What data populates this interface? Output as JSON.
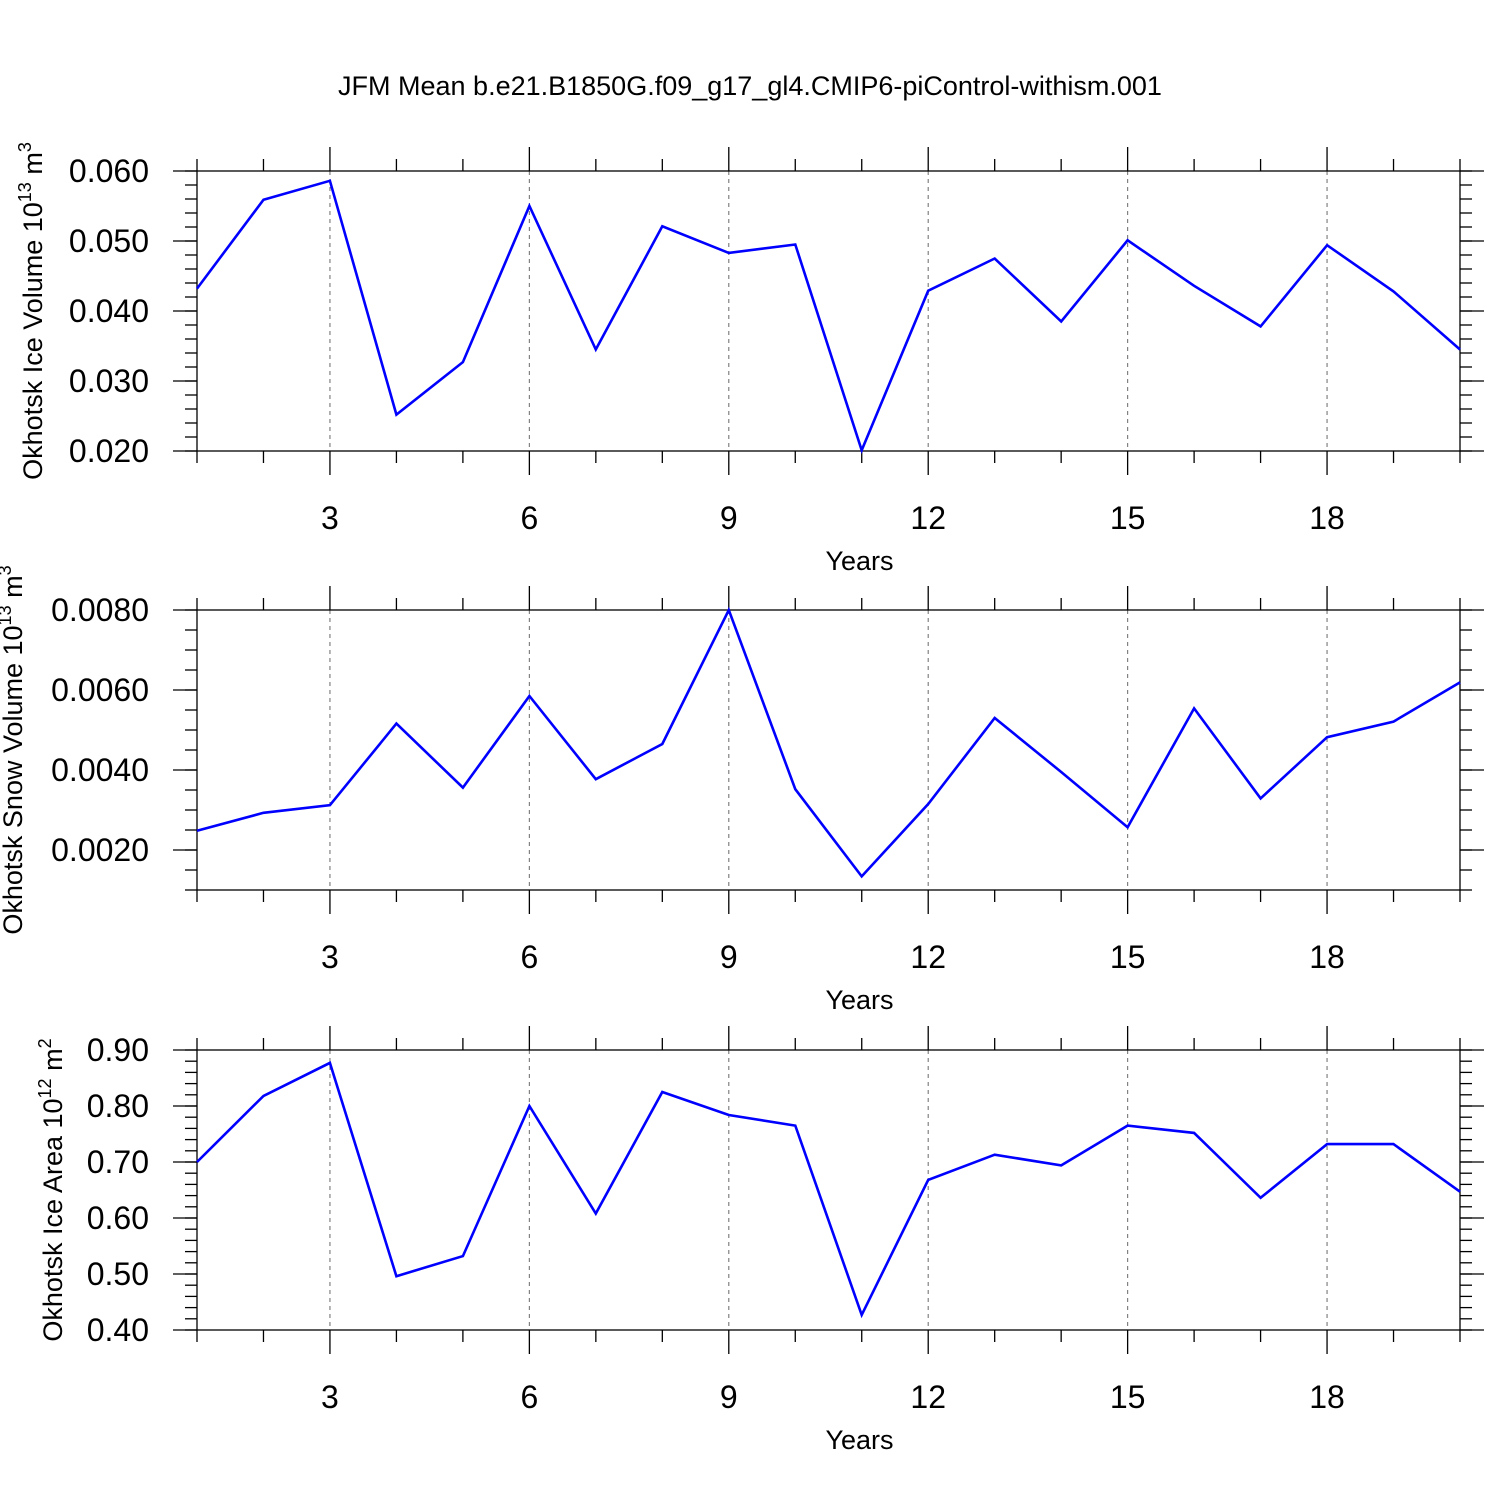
{
  "title": "JFM Mean b.e21.B1850G.f09_g17_gl4.CMIP6-piControl-withism.001",
  "colors": {
    "line": "#0000ff",
    "grid": "#777777",
    "axis": "#000000"
  },
  "chart_data": [
    {
      "type": "line",
      "xlabel": "Years",
      "ylabel": {
        "base": "Okhotsk Ice Volume 10",
        "exp": "13",
        "unit": " m",
        "unit_exp": "3"
      },
      "xlim": [
        1,
        20
      ],
      "ylim": [
        0.02,
        0.06
      ],
      "xticks": [
        3,
        6,
        9,
        12,
        15,
        18
      ],
      "xtick_labels": [
        "3",
        "6",
        "9",
        "12",
        "15",
        "18"
      ],
      "yticks": [
        0.02,
        0.03,
        0.04,
        0.05,
        0.06
      ],
      "ytick_labels": [
        "0.020",
        "0.030",
        "0.040",
        "0.050",
        "0.060"
      ],
      "yminor_step": 0.002,
      "grid": "vertical dashed at major x ticks",
      "x": [
        1,
        2,
        3,
        4,
        5,
        6,
        7,
        8,
        9,
        10,
        11,
        12,
        13,
        14,
        15,
        16,
        17,
        18,
        19,
        20
      ],
      "series": [
        {
          "values": [
            0.0432,
            0.0559,
            0.0586,
            0.0252,
            0.0327,
            0.055,
            0.0345,
            0.0521,
            0.0483,
            0.0495,
            0.0201,
            0.0429,
            0.0475,
            0.0385,
            0.0501,
            0.0436,
            0.0378,
            0.0494,
            0.0428,
            0.0345
          ]
        }
      ]
    },
    {
      "type": "line",
      "xlabel": "Years",
      "ylabel": {
        "base": "Okhotsk Snow Volume 10",
        "exp": "13",
        "unit": " m",
        "unit_exp": "3"
      },
      "xlim": [
        1,
        20
      ],
      "ylim": [
        0.001,
        0.008
      ],
      "xticks": [
        3,
        6,
        9,
        12,
        15,
        18
      ],
      "xtick_labels": [
        "3",
        "6",
        "9",
        "12",
        "15",
        "18"
      ],
      "yticks": [
        0.002,
        0.004,
        0.006,
        0.008
      ],
      "ytick_labels": [
        "0.0020",
        "0.0040",
        "0.0060",
        "0.0080"
      ],
      "yminor_step": 0.0005,
      "grid": "vertical dashed at major x ticks",
      "x": [
        1,
        2,
        3,
        4,
        5,
        6,
        7,
        8,
        9,
        10,
        11,
        12,
        13,
        14,
        15,
        16,
        17,
        18,
        19,
        20
      ],
      "series": [
        {
          "values": [
            0.00248,
            0.00293,
            0.00312,
            0.00516,
            0.00356,
            0.00585,
            0.00377,
            0.00465,
            0.008,
            0.00352,
            0.00134,
            0.00315,
            0.0053,
            0.00395,
            0.00257,
            0.00554,
            0.00329,
            0.00482,
            0.00521,
            0.00619
          ]
        }
      ]
    },
    {
      "type": "line",
      "xlabel": "Years",
      "ylabel": {
        "base": "Okhotsk Ice Area 10",
        "exp": "12",
        "unit": " m",
        "unit_exp": "2"
      },
      "xlim": [
        1,
        20
      ],
      "ylim": [
        0.4,
        0.9
      ],
      "xticks": [
        3,
        6,
        9,
        12,
        15,
        18
      ],
      "xtick_labels": [
        "3",
        "6",
        "9",
        "12",
        "15",
        "18"
      ],
      "yticks": [
        0.4,
        0.5,
        0.6,
        0.7,
        0.8,
        0.9
      ],
      "ytick_labels": [
        "0.40",
        "0.50",
        "0.60",
        "0.70",
        "0.80",
        "0.90"
      ],
      "yminor_step": 0.02,
      "grid": "vertical dashed at major x ticks",
      "x": [
        1,
        2,
        3,
        4,
        5,
        6,
        7,
        8,
        9,
        10,
        11,
        12,
        13,
        14,
        15,
        16,
        17,
        18,
        19,
        20
      ],
      "series": [
        {
          "values": [
            0.7,
            0.818,
            0.877,
            0.496,
            0.532,
            0.8,
            0.608,
            0.825,
            0.784,
            0.765,
            0.427,
            0.668,
            0.713,
            0.694,
            0.765,
            0.752,
            0.636,
            0.732,
            0.732,
            0.647
          ]
        }
      ]
    }
  ]
}
